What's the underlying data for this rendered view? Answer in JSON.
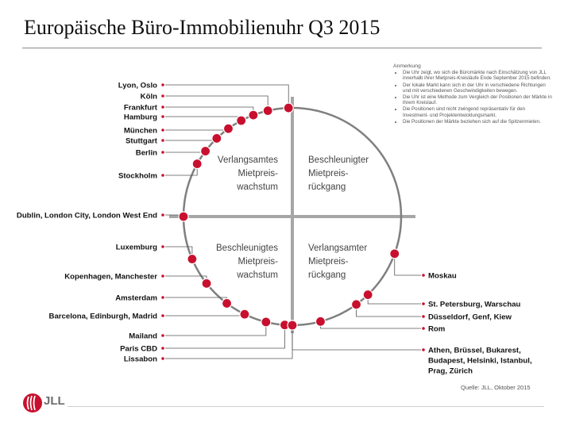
{
  "title": "Europäische Büro-Immobilienuhr Q3 2015",
  "notes": {
    "heading": "Anmerkung",
    "items": [
      "Die Uhr zeigt, wo sich die Büromärkte nach Einschätzung von JLL innerhalb ihrer Mietpreis-Kreisläufe Ende September 2015 befinden.",
      "Der lokale Markt kann sich in der Uhr in verschiedene Richtungen und mit verschiedenen Geschwindigkeiten bewegen.",
      "Die Uhr ist eine Methode zum Vergleich der Positionen der Märkte in ihrem Kreislauf.",
      "Die Positionen sind nicht zwingend repräsentativ für den Investment- und Projektentwicklungsmarkt.",
      "Die Positionen der Märkte beziehen sich auf die Spitzenmieten."
    ]
  },
  "quadrants": {
    "top_left": [
      "Verlangsamtes",
      "Mietpreis-",
      "wachstum"
    ],
    "top_right": [
      "Beschleunigter",
      "Mietpreis-",
      "rückgang"
    ],
    "bottom_left": [
      "Beschleunigtes",
      "Mietpreis-",
      "wachstum"
    ],
    "bottom_right": [
      "Verlangsamter",
      "Mietpreis-",
      "rückgang"
    ]
  },
  "markets_left": [
    [
      "Lyon, Oslo"
    ],
    [
      "Köln"
    ],
    [
      "Frankfurt"
    ],
    [
      "Hamburg"
    ],
    [
      "München"
    ],
    [
      "Stuttgart"
    ],
    [
      "Berlin"
    ],
    [
      "Stockholm"
    ],
    [
      "Dublin, London City, London West End"
    ],
    [
      "Luxemburg"
    ],
    [
      "Kopenhagen, Manchester"
    ],
    [
      "Amsterdam"
    ],
    [
      "Barcelona, Edinburgh, Madrid"
    ],
    [
      "Mailand"
    ],
    [
      "Paris CBD"
    ],
    [
      "Lissabon"
    ]
  ],
  "markets_right": [
    [
      "Moskau"
    ],
    [
      "St. Petersburg, Warschau"
    ],
    [
      "Düsseldorf, Genf, Kiew"
    ],
    [
      "Rom"
    ],
    [
      "Athen, Brüssel, Bukarest,",
      "Budapest, Helsinki, Istanbul,",
      "Prag, Zürich"
    ]
  ],
  "source": "Quelle: JLL, Oktober 2015",
  "logo_text": "JLL",
  "colors": {
    "marker": "#c8102e",
    "circle": "#7f7f7f",
    "axes": "#999999",
    "leader": "#555555"
  }
}
